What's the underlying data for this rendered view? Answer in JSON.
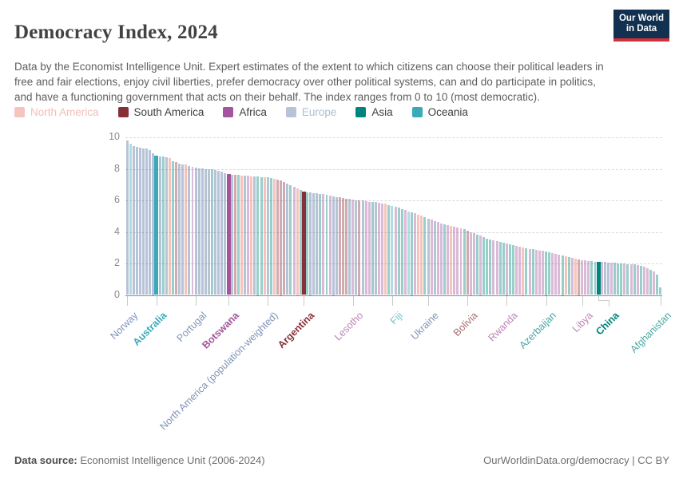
{
  "header": {
    "title": "Democracy Index, 2024",
    "logo_line1": "Our World",
    "logo_line2": "in Data"
  },
  "subtitle": "Data by the Economist Intelligence Unit. Expert estimates of the extent to which citizens can choose their political leaders in free and fair elections, enjoy civil liberties, prefer democracy over other political systems, can and do participate in politics, and have a functioning government that acts on their behalf. The index ranges from 0 to 10 (most democratic).",
  "legend": [
    {
      "label": "North America",
      "code": "NA",
      "faded": true
    },
    {
      "label": "South America",
      "code": "SA",
      "faded": false
    },
    {
      "label": "Africa",
      "code": "AF",
      "faded": false
    },
    {
      "label": "Europe",
      "code": "EU",
      "faded": true
    },
    {
      "label": "Asia",
      "code": "AS",
      "faded": false
    },
    {
      "label": "Oceania",
      "code": "OC",
      "faded": false
    }
  ],
  "colors": {
    "NA": "#e56e5a",
    "SA": "#883039",
    "AF": "#a2559c",
    "EU": "#4c6a9c",
    "AS": "#00847e",
    "OC": "#38aaba",
    "AGG": "#4c6a9c",
    "faded_bar_alpha": 0.4,
    "faded_label_alpha": 0.72,
    "faded_legend_text_alpha": 0.45,
    "active_legend_text": "#3d3d3d",
    "axis_text": "#8a8a8a",
    "grid": "#d9d9d9",
    "axis_line": "#8c8c8c",
    "tick": "#c9c9c9",
    "logo_blue": "#12304f",
    "logo_red": "#cf3138"
  },
  "chart_data": {
    "type": "bar",
    "title": "Democracy Index, 2024",
    "xlabel": "",
    "ylabel": "",
    "ylim": [
      0,
      10
    ],
    "yticks": [
      0,
      2,
      4,
      6,
      8,
      10
    ],
    "grid": "horizontal-dashed",
    "legend_position": "top",
    "values": [
      9.81,
      9.61,
      9.45,
      9.4,
      9.35,
      9.3,
      9.28,
      9.19,
      9.0,
      8.85,
      8.8,
      8.78,
      8.73,
      8.69,
      8.48,
      8.45,
      8.34,
      8.29,
      8.28,
      8.2,
      8.14,
      8.1,
      8.05,
      8.01,
      7.99,
      7.97,
      7.96,
      7.9,
      7.85,
      7.8,
      7.7,
      7.65,
      7.64,
      7.62,
      7.6,
      7.58,
      7.56,
      7.55,
      7.52,
      7.51,
      7.5,
      7.48,
      7.46,
      7.45,
      7.4,
      7.35,
      7.3,
      7.25,
      7.15,
      7.05,
      6.95,
      6.85,
      6.75,
      6.65,
      6.55,
      6.52,
      6.5,
      6.48,
      6.45,
      6.42,
      6.38,
      6.33,
      6.28,
      6.25,
      6.22,
      6.18,
      6.15,
      6.12,
      6.08,
      6.05,
      6.02,
      6.0,
      5.98,
      5.95,
      5.92,
      5.9,
      5.88,
      5.85,
      5.82,
      5.78,
      5.72,
      5.65,
      5.58,
      5.52,
      5.45,
      5.38,
      5.3,
      5.25,
      5.18,
      5.1,
      5.02,
      4.95,
      4.86,
      4.78,
      4.7,
      4.62,
      4.55,
      4.48,
      4.42,
      4.38,
      4.33,
      4.28,
      4.22,
      4.16,
      4.1,
      4.0,
      3.92,
      3.84,
      3.75,
      3.66,
      3.58,
      3.52,
      3.46,
      3.4,
      3.35,
      3.3,
      3.25,
      3.2,
      3.15,
      3.1,
      3.05,
      3.0,
      2.96,
      2.93,
      2.9,
      2.87,
      2.83,
      2.79,
      2.75,
      2.7,
      2.65,
      2.6,
      2.55,
      2.5,
      2.45,
      2.4,
      2.35,
      2.3,
      2.25,
      2.21,
      2.18,
      2.16,
      2.14,
      2.12,
      2.11,
      2.1,
      2.08,
      2.06,
      2.05,
      2.03,
      2.02,
      2.0,
      1.99,
      1.97,
      1.95,
      1.93,
      1.9,
      1.86,
      1.8,
      1.72,
      1.62,
      1.48,
      1.3,
      0.48
    ],
    "continents": [
      "EU",
      "OC",
      "EU",
      "EU",
      "EU",
      "EU",
      "EU",
      "EU",
      "EU",
      "OC",
      "EU",
      "AS",
      "EU",
      "NA",
      "AS",
      "SA",
      "EU",
      "EU",
      "NA",
      "EU",
      "AF",
      "EU",
      "EU",
      "EU",
      "EU",
      "EU",
      "AS",
      "EU",
      "EU",
      "EU",
      "EU",
      "AF",
      "EU",
      "SA",
      "AS",
      "NA",
      "EU",
      "AF",
      "NA",
      "EU",
      "AS",
      "AS",
      "NA",
      "AGG",
      "AS",
      "NA",
      "SA",
      "SA",
      "SA",
      "EU",
      "AS",
      "AF",
      "NA",
      "AS",
      "SA",
      "AS",
      "EU",
      "EU",
      "EU",
      "AS",
      "AF",
      "AS",
      "AF",
      "EU",
      "EU",
      "SA",
      "SA",
      "SA",
      "EU",
      "AF",
      "EU",
      "SA",
      "EU",
      "AF",
      "AF",
      "AS",
      "EU",
      "AF",
      "AF",
      "NA",
      "AS",
      "OC",
      "AF",
      "AS",
      "AS",
      "AF",
      "OC",
      "AS",
      "AF",
      "NA",
      "NA",
      "AS",
      "EU",
      "AF",
      "EU",
      "AF",
      "AF",
      "AS",
      "AF",
      "NA",
      "AF",
      "AF",
      "AF",
      "AS",
      "SA",
      "AF",
      "AF",
      "AS",
      "AF",
      "AS",
      "AS",
      "AS",
      "AF",
      "AF",
      "AS",
      "AS",
      "AF",
      "AS",
      "AS",
      "AF",
      "AF",
      "NA",
      "AS",
      "AF",
      "AS",
      "AF",
      "AF",
      "AF",
      "AS",
      "AS",
      "AF",
      "AF",
      "AF",
      "AS",
      "NA",
      "AS",
      "AF",
      "NA",
      "SA",
      "AF",
      "AF",
      "AF",
      "AS",
      "AS",
      "AS",
      "AF",
      "EU",
      "EU",
      "AF",
      "AS",
      "AS",
      "AS",
      "AF",
      "AS",
      "AF",
      "AS",
      "AF",
      "AS",
      "AF",
      "AF",
      "AS",
      "AF",
      "AS",
      "AS"
    ],
    "highlighted_indices": [
      9,
      31,
      54,
      144
    ],
    "tick_labels": [
      {
        "i": 0,
        "t": "Norway"
      },
      {
        "i": 9,
        "t": "Australia",
        "bold": true
      },
      {
        "i": 21,
        "t": "Portugal"
      },
      {
        "i": 31,
        "t": "Botswana",
        "bold": true
      },
      {
        "i": 43,
        "t": "North America (population-weighted)"
      },
      {
        "i": 54,
        "t": "Argentina",
        "bold": true
      },
      {
        "i": 69,
        "t": "Lesotho"
      },
      {
        "i": 81,
        "t": "Fiji"
      },
      {
        "i": 92,
        "t": "Ukraine"
      },
      {
        "i": 104,
        "t": "Bolivia"
      },
      {
        "i": 116,
        "t": "Rwanda"
      },
      {
        "i": 128,
        "t": "Azerbaijan"
      },
      {
        "i": 139,
        "t": "Libya"
      },
      {
        "i": 144,
        "t": "China",
        "bold": true,
        "connector": "elbow"
      },
      {
        "i": 163,
        "t": "Afghanistan"
      }
    ]
  },
  "footer": {
    "source_prefix": "Data source:",
    "source": " Economist Intelligence Unit (2006-2024)",
    "credit": "OurWorldinData.org/democracy | CC BY"
  }
}
